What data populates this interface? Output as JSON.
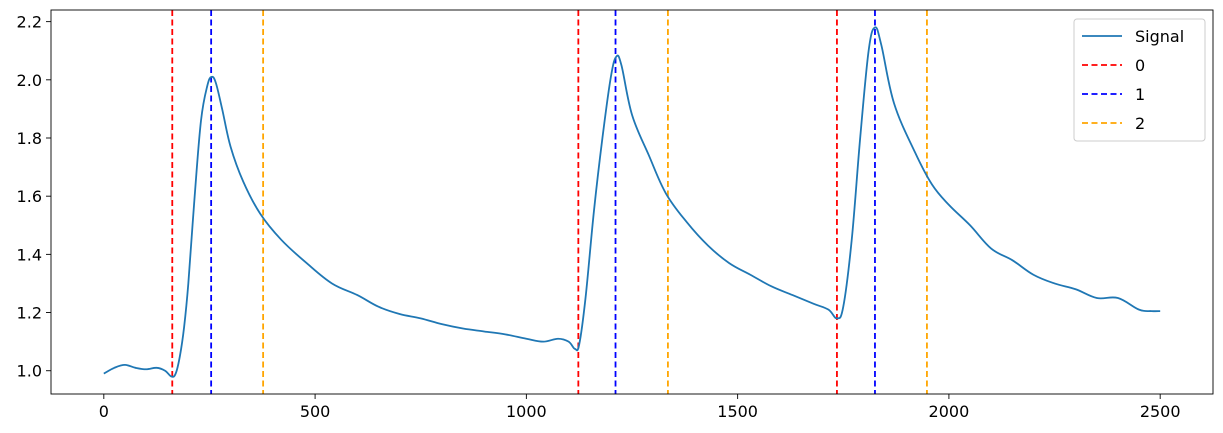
{
  "chart_data": {
    "type": "line",
    "title": "",
    "xlabel": "",
    "ylabel": "",
    "xlim": [
      -125,
      2625
    ],
    "ylim": [
      0.92,
      2.24
    ],
    "x_ticks": [
      0,
      500,
      1000,
      1500,
      2000,
      2500
    ],
    "y_ticks": [
      1.0,
      1.2,
      1.4,
      1.6,
      1.8,
      2.0,
      2.2
    ],
    "x_tick_labels": [
      "0",
      "500",
      "1000",
      "1500",
      "2000",
      "2500"
    ],
    "y_tick_labels": [
      "1.0",
      "1.2",
      "1.4",
      "1.6",
      "1.8",
      "2.0",
      "2.2"
    ],
    "grid": false,
    "legend_position": "top-right",
    "series": [
      {
        "name": "Signal",
        "color": "#1f77b4",
        "x": [
          0,
          25,
          50,
          75,
          100,
          125,
          145,
          160,
          170,
          180,
          190,
          200,
          215,
          230,
          245,
          255,
          265,
          280,
          300,
          330,
          370,
          420,
          480,
          540,
          600,
          650,
          700,
          750,
          800,
          850,
          900,
          950,
          1000,
          1040,
          1075,
          1100,
          1115,
          1125,
          1140,
          1160,
          1180,
          1200,
          1213,
          1225,
          1250,
          1290,
          1330,
          1380,
          1430,
          1480,
          1530,
          1580,
          1630,
          1680,
          1715,
          1735,
          1750,
          1770,
          1790,
          1810,
          1825,
          1840,
          1870,
          1920,
          1960,
          2000,
          2050,
          2100,
          2150,
          2200,
          2250,
          2300,
          2350,
          2400,
          2450,
          2480,
          2500
        ],
        "y": [
          0.99,
          1.01,
          1.02,
          1.01,
          1.005,
          1.01,
          1.0,
          0.98,
          0.99,
          1.05,
          1.15,
          1.3,
          1.6,
          1.86,
          1.98,
          2.01,
          1.99,
          1.9,
          1.77,
          1.65,
          1.54,
          1.45,
          1.37,
          1.3,
          1.26,
          1.22,
          1.195,
          1.18,
          1.16,
          1.145,
          1.135,
          1.125,
          1.11,
          1.1,
          1.11,
          1.1,
          1.075,
          1.09,
          1.25,
          1.55,
          1.8,
          2.01,
          2.08,
          2.05,
          1.88,
          1.74,
          1.61,
          1.51,
          1.43,
          1.37,
          1.33,
          1.29,
          1.26,
          1.23,
          1.21,
          1.18,
          1.22,
          1.45,
          1.8,
          2.1,
          2.18,
          2.12,
          1.92,
          1.75,
          1.64,
          1.57,
          1.5,
          1.42,
          1.38,
          1.33,
          1.3,
          1.28,
          1.25,
          1.25,
          1.21,
          1.205,
          1.205
        ]
      }
    ],
    "vlines": [
      {
        "name": "0",
        "color": "#ff0000",
        "x": [
          162,
          1123,
          1735
        ]
      },
      {
        "name": "1",
        "color": "#0000ff",
        "x": [
          254,
          1211,
          1825
        ]
      },
      {
        "name": "2",
        "color": "#ffa500",
        "x": [
          377,
          1335,
          1948
        ]
      }
    ]
  }
}
